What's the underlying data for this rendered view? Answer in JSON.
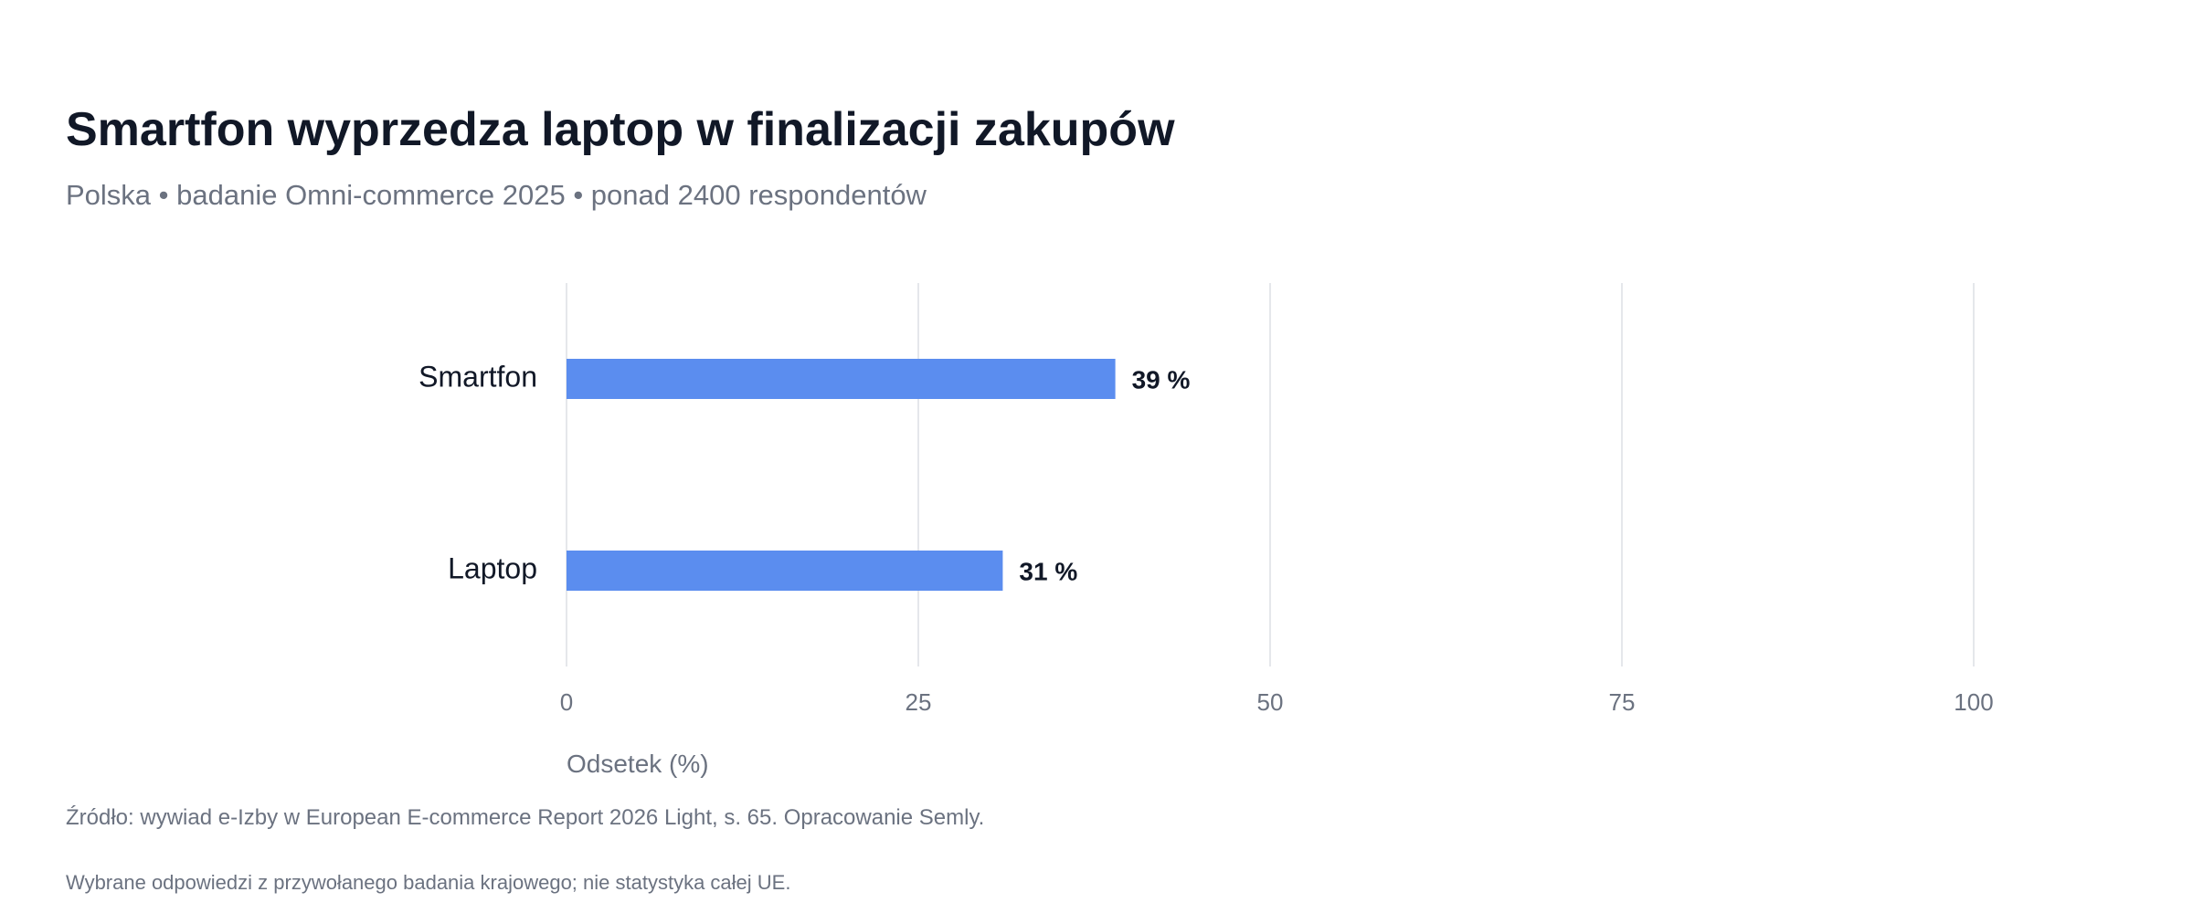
{
  "chart_data": {
    "type": "bar",
    "orientation": "horizontal",
    "title": "Smartfon wyprzedza laptop w finalizacji zakupów",
    "subtitle": "Polska • badanie Omni-commerce 2025 • ponad 2400 respondentów",
    "categories": [
      "Smartfon",
      "Laptop"
    ],
    "values": [
      39,
      31
    ],
    "value_labels": [
      "39 %",
      "31 %"
    ],
    "xlabel": "Odsetek (%)",
    "ylabel": "",
    "xlim": [
      0,
      100
    ],
    "xticks": [
      "0",
      "25",
      "50",
      "75",
      "100"
    ],
    "grid": "vertical",
    "bar_color": "#5b8def",
    "source": "Źródło: wywiad e-Izby w European E-commerce Report 2026 Light, s. 65. Opracowanie Semly.",
    "note": "Wybrane odpowiedzi z przywołanego badania krajowego; nie statystyka całej UE."
  }
}
